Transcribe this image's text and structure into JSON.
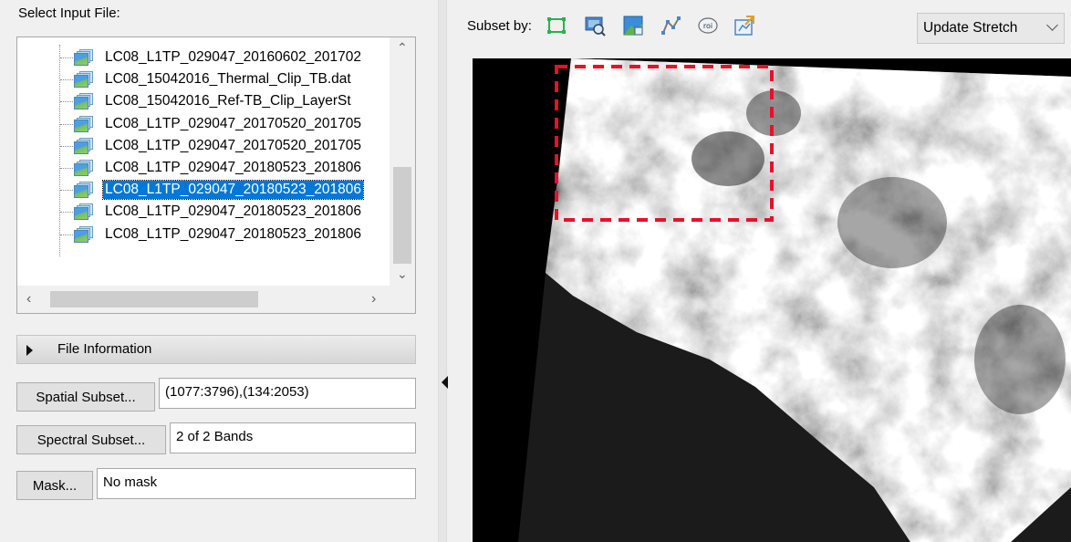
{
  "left": {
    "select_label": "Select Input File:",
    "files": [
      {
        "label": "LC08_L1TP_029047_20160602_201702",
        "selected": false
      },
      {
        "label": "LC08_15042016_Thermal_Clip_TB.dat",
        "selected": false
      },
      {
        "label": "LC08_15042016_Ref-TB_Clip_LayerSt",
        "selected": false
      },
      {
        "label": "LC08_L1TP_029047_20170520_201705",
        "selected": false
      },
      {
        "label": "LC08_L1TP_029047_20170520_201705",
        "selected": false
      },
      {
        "label": "LC08_L1TP_029047_20180523_201806",
        "selected": false
      },
      {
        "label": "LC08_L1TP_029047_20180523_201806",
        "selected": true
      },
      {
        "label": "LC08_L1TP_029047_20180523_201806",
        "selected": false
      },
      {
        "label": "LC08_L1TP_029047_20180523_201806",
        "selected": false
      }
    ],
    "file_info_label": "File Information",
    "spatial_subset": {
      "button": "Spatial Subset...",
      "value": "(1077:3796),(134:2053)"
    },
    "spectral_subset": {
      "button": "Spectral Subset...",
      "value": "2 of 2 Bands"
    },
    "mask": {
      "button": "Mask...",
      "value": "No mask"
    }
  },
  "right": {
    "subset_by_label": "Subset by:",
    "tools": [
      "rectangle-select-icon",
      "view-subset-icon",
      "image-subset-icon",
      "vector-subset-icon",
      "roi-subset-icon",
      "file-subset-icon"
    ],
    "roi_glyph": "roi",
    "stretch_select": "Update Stretch"
  },
  "colors": {
    "selection": "#0078d7",
    "subset_box": "#e8102a",
    "tool_green": "#2bb24c"
  }
}
